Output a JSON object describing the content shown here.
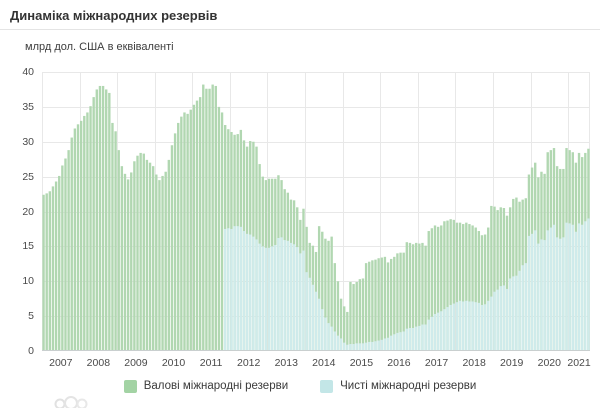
{
  "title": "Динаміка міжнародних резервів",
  "chart_data": {
    "type": "bar",
    "title": "Динаміка міжнародних резервів",
    "y_axis_title": "млрд дол. США в еквіваленті",
    "unit": "млрд дол. США",
    "interval": "monthly",
    "x_start": "2007-01",
    "x_end": "2021-07",
    "ylim": [
      0,
      40
    ],
    "y_ticks": [
      0,
      5,
      10,
      15,
      20,
      25,
      30,
      35,
      40
    ],
    "years": [
      "2007",
      "2008",
      "2009",
      "2010",
      "2011",
      "2012",
      "2013",
      "2014",
      "2015",
      "2016",
      "2017",
      "2018",
      "2019",
      "2020",
      "2021"
    ],
    "grid": true,
    "legend_position": "bottom",
    "colors": {
      "grid": "#e8e8e8",
      "axis_line": "#c9cfcf",
      "background": "#ffffff"
    },
    "series": [
      {
        "name": "Валові міжнародні резерви",
        "color": "#b1d7b1",
        "legend_color": "#a3d3a4",
        "values": [
          22.4,
          22.6,
          22.9,
          23.6,
          24.3,
          25.1,
          26.6,
          27.6,
          28.8,
          30.6,
          31.9,
          32.5,
          33.0,
          33.7,
          34.2,
          35.1,
          36.4,
          37.5,
          38.0,
          38.0,
          37.5,
          37.0,
          32.7,
          31.5,
          28.8,
          26.5,
          25.4,
          24.6,
          25.6,
          27.2,
          28.0,
          28.4,
          28.3,
          27.4,
          27.0,
          26.5,
          25.3,
          24.5,
          25.1,
          25.7,
          27.4,
          29.5,
          31.2,
          32.7,
          33.6,
          34.2,
          34.0,
          34.6,
          35.3,
          35.9,
          36.4,
          38.2,
          37.6,
          37.6,
          38.2,
          38.0,
          35.0,
          34.2,
          32.4,
          31.8,
          31.4,
          31.0,
          31.1,
          31.7,
          30.2,
          29.3,
          30.1,
          30.0,
          29.3,
          26.8,
          25.0,
          24.5,
          24.7,
          24.7,
          24.7,
          25.2,
          24.5,
          23.2,
          22.7,
          21.7,
          21.6,
          20.6,
          18.8,
          20.4,
          17.8,
          15.5,
          15.1,
          14.2,
          17.9,
          17.1,
          16.1,
          15.8,
          16.4,
          12.6,
          10.0,
          7.5,
          6.4,
          5.6,
          9.9,
          9.6,
          9.9,
          10.3,
          10.4,
          12.6,
          12.8,
          13.0,
          13.1,
          13.3,
          13.4,
          13.5,
          12.7,
          13.2,
          13.5,
          14.0,
          14.1,
          14.1,
          15.6,
          15.5,
          15.3,
          15.5,
          15.4,
          15.5,
          15.1,
          17.2,
          17.6,
          18.0,
          17.8,
          18.0,
          18.6,
          18.7,
          18.9,
          18.8,
          18.4,
          18.4,
          18.2,
          18.4,
          18.2,
          18.0,
          17.7,
          17.2,
          16.6,
          16.7,
          17.7,
          20.8,
          20.7,
          20.2,
          20.6,
          20.5,
          19.4,
          20.6,
          21.8,
          22.0,
          21.4,
          21.7,
          21.9,
          25.3,
          26.3,
          27.0,
          24.9,
          25.7,
          25.4,
          28.5,
          28.8,
          29.1,
          26.5,
          26.1,
          26.1,
          29.1,
          28.8,
          28.5,
          27.0,
          28.4,
          27.8,
          28.4,
          29.0
        ]
      },
      {
        "name": "Чисті міжнародні резерви",
        "color": "#cfebeb",
        "legend_color": "#c3e6e7",
        "values": [
          null,
          null,
          null,
          null,
          null,
          null,
          null,
          null,
          null,
          null,
          null,
          null,
          null,
          null,
          null,
          null,
          null,
          null,
          null,
          null,
          null,
          null,
          null,
          null,
          null,
          null,
          null,
          null,
          null,
          null,
          null,
          null,
          null,
          null,
          null,
          null,
          null,
          null,
          null,
          null,
          null,
          null,
          null,
          null,
          null,
          null,
          null,
          null,
          null,
          null,
          null,
          null,
          null,
          null,
          null,
          null,
          null,
          null,
          17.5,
          17.6,
          17.5,
          17.9,
          17.9,
          17.8,
          17.2,
          16.8,
          16.7,
          16.4,
          16.0,
          15.4,
          15.0,
          14.8,
          14.8,
          15.0,
          15.2,
          16.2,
          16.3,
          15.9,
          15.8,
          15.5,
          15.3,
          14.9,
          14.0,
          14.4,
          11.3,
          10.5,
          9.5,
          8.5,
          7.5,
          6.0,
          4.8,
          4.0,
          3.5,
          2.8,
          2.2,
          1.8,
          1.2,
          0.9,
          1.0,
          1.0,
          1.1,
          1.1,
          1.1,
          1.2,
          1.3,
          1.3,
          1.4,
          1.5,
          1.6,
          1.8,
          1.9,
          2.2,
          2.4,
          2.6,
          2.7,
          2.8,
          3.2,
          3.3,
          3.3,
          3.5,
          3.6,
          3.8,
          3.8,
          4.5,
          4.9,
          5.3,
          5.5,
          5.7,
          6.0,
          6.3,
          6.6,
          6.8,
          7.0,
          7.2,
          7.1,
          7.2,
          7.1,
          7.1,
          7.0,
          6.9,
          6.6,
          6.7,
          7.2,
          7.8,
          8.5,
          8.8,
          9.3,
          9.4,
          8.9,
          10.4,
          10.7,
          10.8,
          11.5,
          12.3,
          12.6,
          16.5,
          16.8,
          17.3,
          15.4,
          16.0,
          15.9,
          17.3,
          17.7,
          18.1,
          16.3,
          16.1,
          16.3,
          18.4,
          18.3,
          18.1,
          17.1,
          18.3,
          18.1,
          18.6,
          19.0
        ]
      }
    ]
  }
}
